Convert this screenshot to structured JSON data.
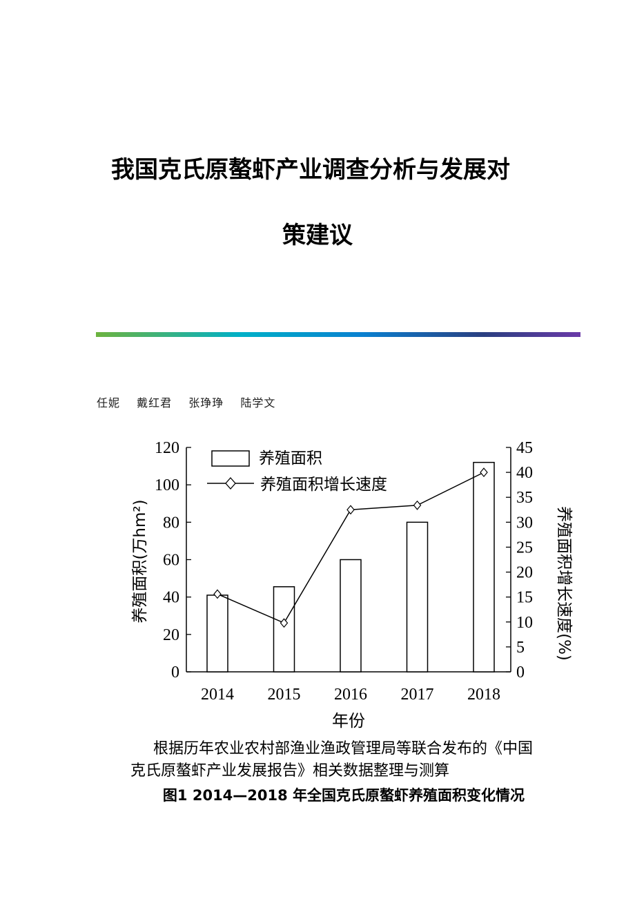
{
  "document": {
    "title_line1": "我国克氏原螯虾产业调查分析与发展对",
    "title_line2": "策建议",
    "authors": [
      "任妮",
      "戴红君",
      "张琤琤",
      "陆学文"
    ],
    "rule_colors": [
      "#6db33f",
      "#00b0c8",
      "#0a80d0",
      "#2a3f80",
      "#6a3aa8"
    ],
    "caption_source_line1": "根据历年农业农村部渔业渔政管理局等联合发布的《中国",
    "caption_source_line2": "克氏原螯虾产业发展报告》相关数据整理与测算",
    "figure_caption": "图1   2014—2018 年全国克氏原螯虾养殖面积变化情况"
  },
  "chart_data": {
    "type": "bar+line",
    "categories": [
      "2014",
      "2015",
      "2016",
      "2017",
      "2018"
    ],
    "xlabel": "年份",
    "ylabel_left": "养殖面积(万hm²)",
    "ylabel_right": "养殖面积增长速度(%)",
    "ylim_left": [
      0,
      120
    ],
    "yticks_left": [
      0,
      20,
      40,
      60,
      80,
      100,
      120
    ],
    "ylim_right": [
      0,
      45
    ],
    "yticks_right": [
      0,
      5,
      10,
      15,
      20,
      25,
      30,
      35,
      40,
      45
    ],
    "legend_position": "top-left",
    "grid": false,
    "series": [
      {
        "name": "养殖面积",
        "type": "bar",
        "axis": "left",
        "values": [
          41,
          45.5,
          60,
          80,
          112
        ]
      },
      {
        "name": "养殖面积增长速度",
        "type": "line",
        "marker": "diamond",
        "axis": "right",
        "values": [
          15.6,
          9.8,
          32.5,
          33.4,
          40
        ]
      }
    ]
  }
}
